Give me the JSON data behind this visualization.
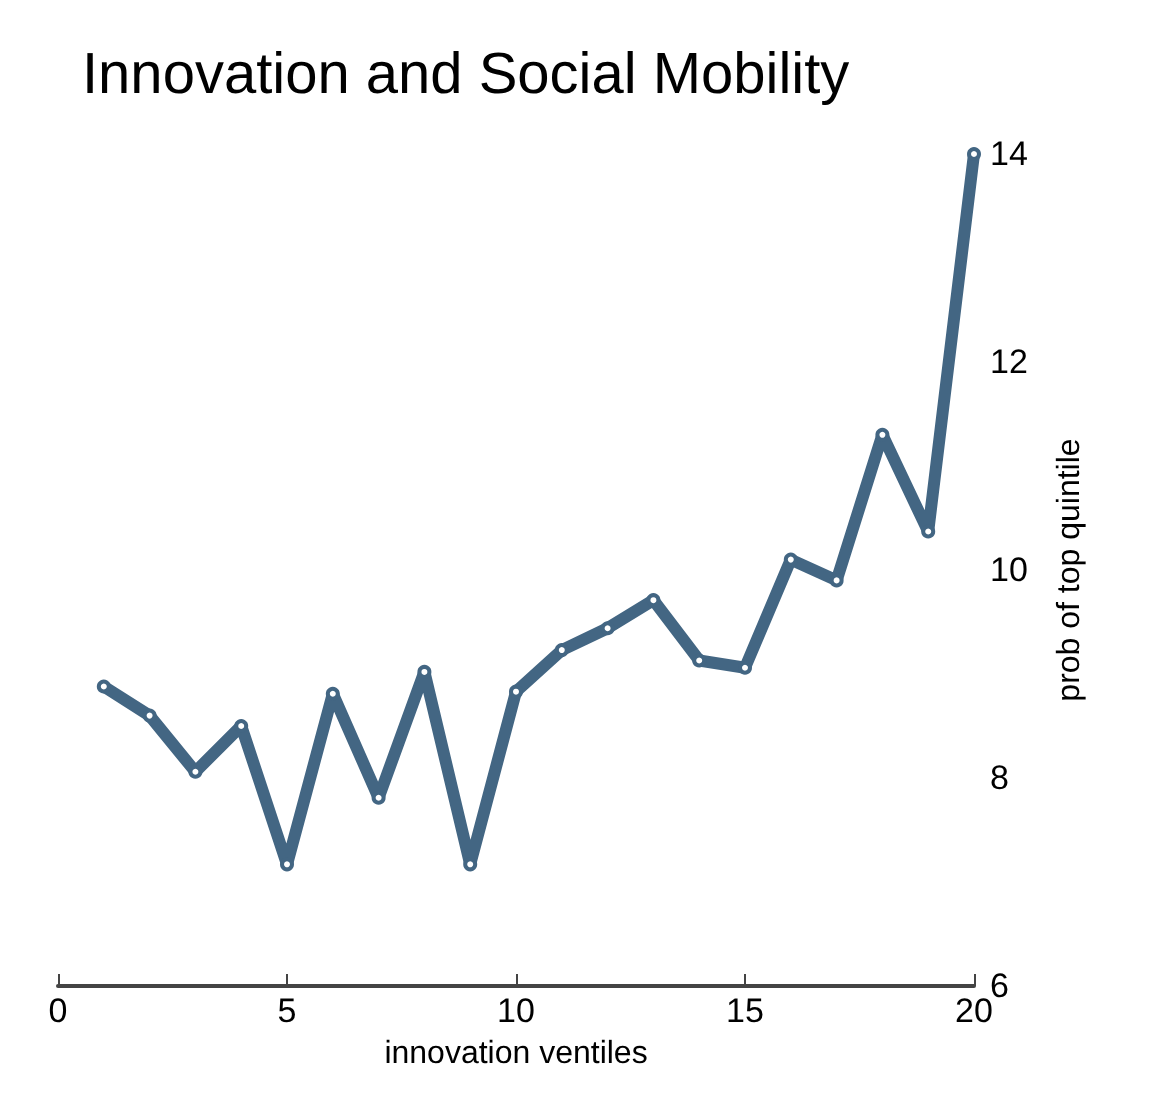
{
  "chart_data": {
    "type": "line",
    "title": "Innovation and Social Mobility",
    "xlabel": "innovation ventiles",
    "ylabel": "prob of top quintile",
    "x": [
      1,
      2,
      3,
      4,
      5,
      6,
      7,
      8,
      9,
      10,
      11,
      12,
      13,
      14,
      15,
      16,
      17,
      18,
      19,
      20
    ],
    "series": [
      {
        "color": "#436683",
        "values": [
          8.88,
          8.6,
          8.06,
          8.5,
          7.17,
          8.81,
          7.81,
          9.02,
          7.17,
          8.83,
          9.23,
          9.44,
          9.71,
          9.13,
          9.06,
          10.1,
          9.9,
          11.3,
          10.37,
          14.0
        ]
      }
    ],
    "xlim": [
      0,
      20
    ],
    "xticks": [
      0,
      5,
      10,
      15,
      20
    ],
    "ylim": [
      6,
      14
    ],
    "yticks": [
      6,
      8,
      10,
      12,
      14
    ],
    "grid": false,
    "marker": "circle",
    "line_style": "solid"
  }
}
